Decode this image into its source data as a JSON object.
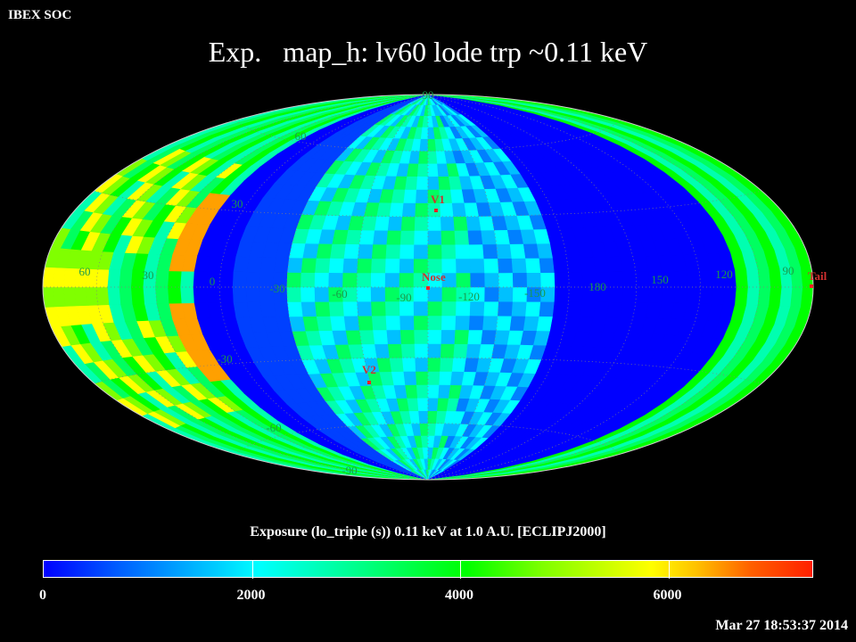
{
  "header": {
    "org": "IBEX SOC",
    "title": "Exp.   map_h: lv60 lode trp ~0.11 keV"
  },
  "map": {
    "projection": "hammer-aitoff",
    "grid": "dotted",
    "lat_labels": [
      "90",
      "60",
      "30",
      "0",
      "-30",
      "-60",
      "-90"
    ],
    "lon_labels": [
      "60",
      "30",
      "0",
      "-30",
      "-60",
      "-90",
      "-120",
      "-150",
      "180",
      "150",
      "120",
      "90"
    ],
    "markers": [
      {
        "label": "V1",
        "color": "#ff2020"
      },
      {
        "label": "Nose",
        "color": "#ff2020"
      },
      {
        "label": "V2",
        "color": "#ff2020"
      },
      {
        "label": "Tail",
        "color": "#ff2020"
      }
    ]
  },
  "colorbar": {
    "title": "Exposure (lo_triple (s))  0.11 keV at 1.0 A.U. [ECLIPJ2000]",
    "min": 0,
    "max": 7400,
    "tick_labels": [
      "0",
      "2000",
      "4000",
      "6000"
    ],
    "tick_values": [
      0,
      2000,
      4000,
      6000
    ]
  },
  "footer": {
    "timestamp": "Mar 27 18:53:37 2014"
  }
}
